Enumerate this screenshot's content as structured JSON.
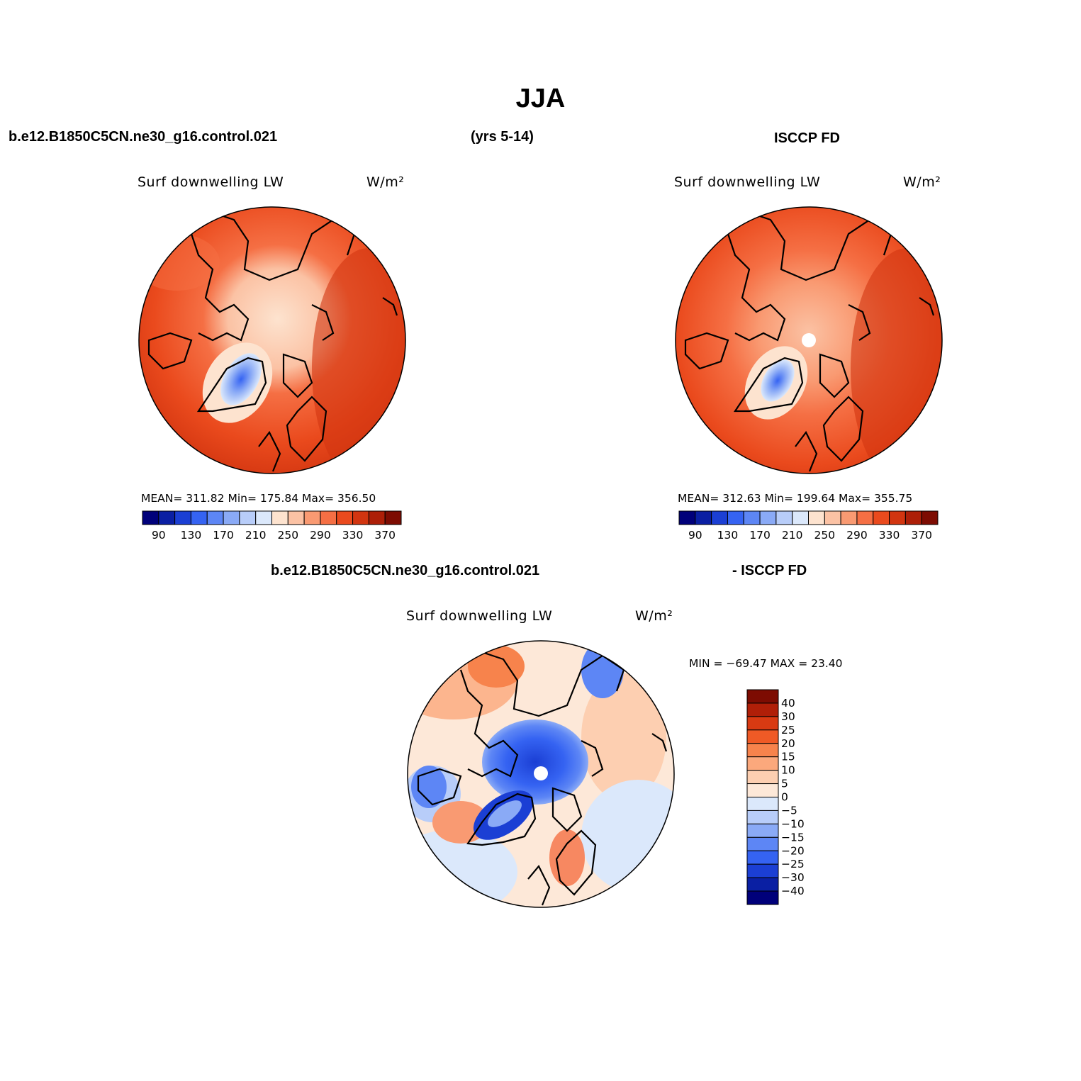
{
  "header": {
    "title": "JJA",
    "case_name": "b.e12.B1850C5CN.ne30_g16.control.021",
    "years": "(yrs 5-14)",
    "obs_name": "ISCCP FD"
  },
  "panels": [
    {
      "variable": "Surf downwelling LW",
      "units": "W/m²",
      "stats": "MEAN= 311.82   Min= 175.84   Max= 356.50"
    },
    {
      "variable": "Surf downwelling LW",
      "units": "W/m²",
      "stats": "MEAN= 312.63   Min= 199.64   Max= 355.75"
    }
  ],
  "diff_panel": {
    "case_label": "b.e12.B1850C5CN.ne30_g16.control.021",
    "obs_label": "- ISCCP FD",
    "variable": "Surf downwelling LW",
    "units": "W/m²",
    "minmax": "MIN = −69.47 MAX =  23.40"
  },
  "colorbar_abs": {
    "colors": [
      "#00007a",
      "#0a1fa3",
      "#1b3fd4",
      "#3563f2",
      "#5d86f5",
      "#8aaaf6",
      "#b8cdf9",
      "#dbe8fb",
      "#fde3cf",
      "#fbc2a4",
      "#f99a72",
      "#f56f44",
      "#ea4a1d",
      "#d23510",
      "#ad1f08",
      "#7d0c02"
    ],
    "tick_labels": [
      "90",
      "130",
      "170",
      "210",
      "250",
      "290",
      "330",
      "370"
    ]
  },
  "colorbar_diff": {
    "colors": [
      "#7d0c02",
      "#b01f08",
      "#d93a12",
      "#ef5a26",
      "#f7834c",
      "#fba87c",
      "#fdcfb1",
      "#fde8d8",
      "#dbe8fb",
      "#b8cdf9",
      "#8aaaf6",
      "#5d86f5",
      "#3563f2",
      "#1b3fd4",
      "#0a1fa3",
      "#00007a"
    ],
    "tick_labels": [
      "40",
      "30",
      "25",
      "20",
      "15",
      "10",
      "5",
      "0",
      "−5",
      "−10",
      "−15",
      "−20",
      "−25",
      "−30",
      "−40"
    ]
  }
}
